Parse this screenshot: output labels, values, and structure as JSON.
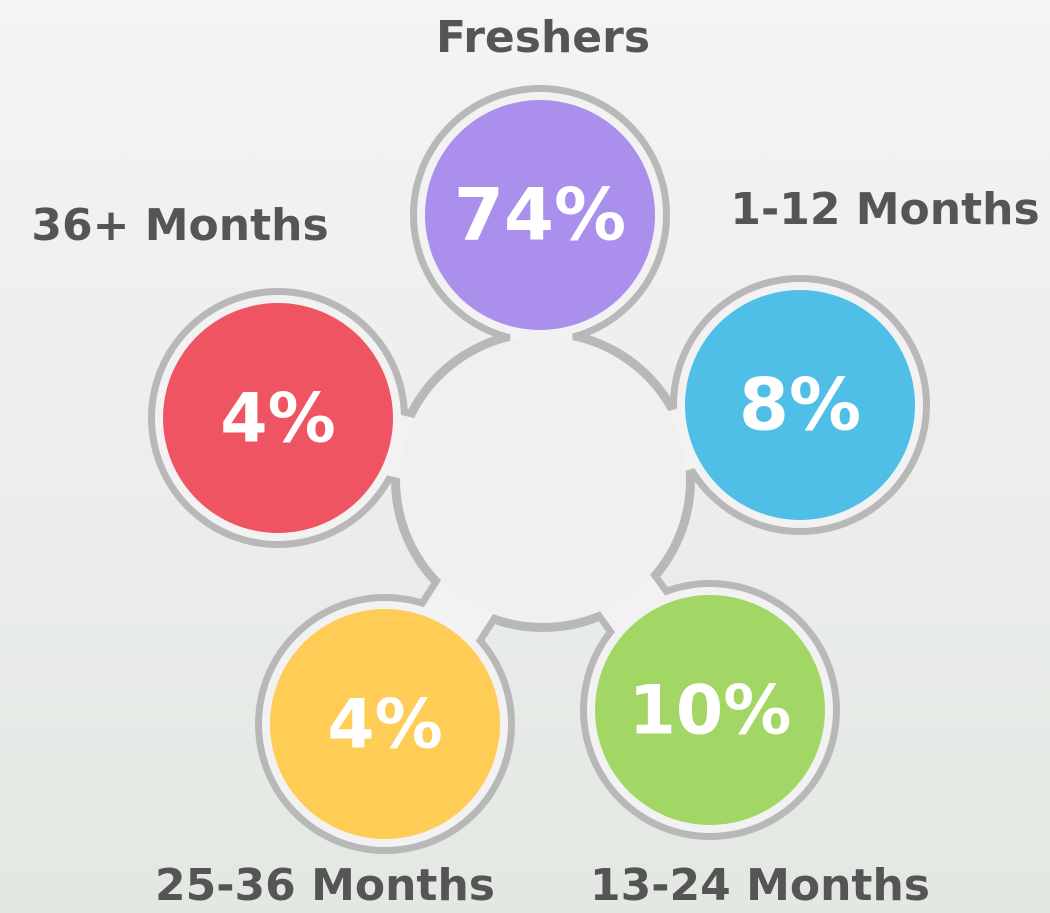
{
  "items": [
    {
      "label": "Freshers",
      "value": "74%"
    },
    {
      "label": "1-12 Months",
      "value": "8%"
    },
    {
      "label": "13-24 Months",
      "value": "10%"
    },
    {
      "label": "25-36 Months",
      "value": "4%"
    },
    {
      "label": "36+ Months",
      "value": "4%"
    }
  ]
}
